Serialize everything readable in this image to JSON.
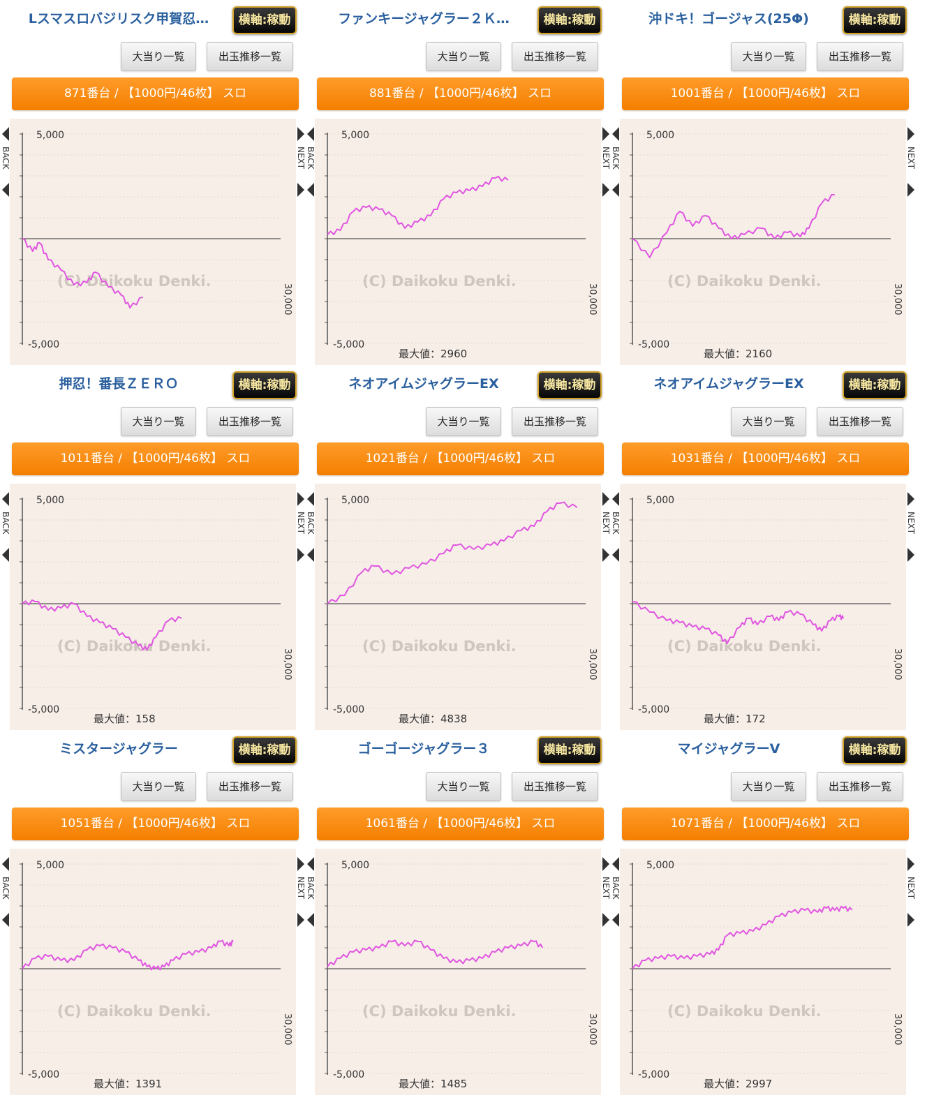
{
  "labels": {
    "axis_badge": "横軸:稼動",
    "bonus_list": "大当り一覧",
    "trend_list": "出玉推移一覧",
    "max_prefix": "最大値：",
    "y_top": "5,000",
    "y_bottom": "-5,000",
    "x_max": "30,000",
    "back": "BACK",
    "next": "NEXT",
    "watermark": "(C) Daikoku Denki."
  },
  "colors": {
    "accent_orange": "#f48a12",
    "line_magenta": "#e056e0",
    "title_blue": "#2a5f9e",
    "graph_bg": "#f7eee8"
  },
  "machines": [
    {
      "title": "Lスマスロバジリスク甲賀忍…",
      "unit": "871番台 / 【1000円/46枚】 スロ",
      "max_value": "",
      "chart_data": {
        "type": "line",
        "ylim": [
          -5000,
          5000
        ],
        "xlim": [
          0,
          30000
        ],
        "points": [
          [
            0,
            0
          ],
          [
            1200,
            -600
          ],
          [
            2000,
            -200
          ],
          [
            3000,
            -1000
          ],
          [
            4500,
            -1500
          ],
          [
            6000,
            -2200
          ],
          [
            7500,
            -2100
          ],
          [
            8500,
            -1600
          ],
          [
            10000,
            -2300
          ],
          [
            11500,
            -2700
          ],
          [
            12500,
            -3300
          ],
          [
            14000,
            -2800
          ]
        ]
      }
    },
    {
      "title": "ファンキージャグラー２Ｋ…",
      "unit": "881番台 / 【1000円/46枚】 スロ",
      "max_value": "2960",
      "chart_data": {
        "type": "line",
        "ylim": [
          -5000,
          5000
        ],
        "xlim": [
          0,
          30000
        ],
        "points": [
          [
            0,
            200
          ],
          [
            1500,
            400
          ],
          [
            3000,
            1300
          ],
          [
            4500,
            1500
          ],
          [
            6000,
            1400
          ],
          [
            7500,
            1100
          ],
          [
            9000,
            500
          ],
          [
            10500,
            800
          ],
          [
            12000,
            1100
          ],
          [
            13500,
            1900
          ],
          [
            15000,
            2200
          ],
          [
            16500,
            2300
          ],
          [
            18000,
            2500
          ],
          [
            19500,
            2900
          ],
          [
            21000,
            2800
          ]
        ]
      }
    },
    {
      "title": "沖ドキ！ゴージャス(25Φ)",
      "unit": "1001番台 / 【1000円/46枚】 スロ",
      "max_value": "2160",
      "chart_data": {
        "type": "line",
        "ylim": [
          -5000,
          5000
        ],
        "xlim": [
          0,
          30000
        ],
        "points": [
          [
            0,
            0
          ],
          [
            2000,
            -900
          ],
          [
            4000,
            300
          ],
          [
            5500,
            1300
          ],
          [
            7000,
            600
          ],
          [
            8500,
            1100
          ],
          [
            10000,
            500
          ],
          [
            11500,
            0
          ],
          [
            13000,
            200
          ],
          [
            15000,
            500
          ],
          [
            16500,
            0
          ],
          [
            18000,
            300
          ],
          [
            19500,
            100
          ],
          [
            20500,
            500
          ],
          [
            22000,
            1700
          ],
          [
            23500,
            2100
          ]
        ]
      }
    },
    {
      "title": "押忍！番長ＺＥＲＯ",
      "unit": "1011番台 / 【1000円/46枚】 スロ",
      "max_value": "158",
      "chart_data": {
        "type": "line",
        "ylim": [
          -5000,
          5000
        ],
        "xlim": [
          0,
          30000
        ],
        "points": [
          [
            0,
            0
          ],
          [
            1500,
            100
          ],
          [
            3000,
            -300
          ],
          [
            4500,
            -200
          ],
          [
            6000,
            0
          ],
          [
            7500,
            -600
          ],
          [
            9000,
            -900
          ],
          [
            10500,
            -1200
          ],
          [
            12000,
            -1600
          ],
          [
            13500,
            -2000
          ],
          [
            14500,
            -2200
          ],
          [
            15500,
            -1600
          ],
          [
            17000,
            -800
          ],
          [
            18500,
            -700
          ]
        ]
      }
    },
    {
      "title": "ネオアイムジャグラーEX",
      "unit": "1021番台 / 【1000円/46枚】 スロ",
      "max_value": "4838",
      "chart_data": {
        "type": "line",
        "ylim": [
          -5000,
          5000
        ],
        "xlim": [
          0,
          30000
        ],
        "points": [
          [
            0,
            0
          ],
          [
            2000,
            400
          ],
          [
            4000,
            1500
          ],
          [
            5500,
            1800
          ],
          [
            7500,
            1400
          ],
          [
            9500,
            1700
          ],
          [
            11500,
            1900
          ],
          [
            13500,
            2400
          ],
          [
            15000,
            2800
          ],
          [
            17000,
            2600
          ],
          [
            19000,
            2800
          ],
          [
            20500,
            3000
          ],
          [
            22500,
            3500
          ],
          [
            24000,
            3700
          ],
          [
            25500,
            4400
          ],
          [
            27000,
            4800
          ],
          [
            29000,
            4600
          ]
        ]
      }
    },
    {
      "title": "ネオアイムジャグラーEX",
      "unit": "1031番台 / 【1000円/46枚】 スロ",
      "max_value": "172",
      "chart_data": {
        "type": "line",
        "ylim": [
          -5000,
          5000
        ],
        "xlim": [
          0,
          30000
        ],
        "points": [
          [
            0,
            100
          ],
          [
            2000,
            -400
          ],
          [
            4000,
            -800
          ],
          [
            5500,
            -900
          ],
          [
            7000,
            -1100
          ],
          [
            8500,
            -1200
          ],
          [
            10000,
            -1500
          ],
          [
            11000,
            -1900
          ],
          [
            12500,
            -1100
          ],
          [
            13500,
            -700
          ],
          [
            14500,
            -1000
          ],
          [
            16000,
            -600
          ],
          [
            17000,
            -800
          ],
          [
            18000,
            -400
          ],
          [
            19500,
            -500
          ],
          [
            21000,
            -1000
          ],
          [
            22000,
            -1300
          ],
          [
            23000,
            -800
          ],
          [
            24000,
            -600
          ],
          [
            24500,
            -700
          ]
        ]
      }
    },
    {
      "title": "ミスタージャグラー",
      "unit": "1051番台 / 【1000円/46枚】 スロ",
      "max_value": "1391",
      "chart_data": {
        "type": "line",
        "ylim": [
          -5000,
          5000
        ],
        "xlim": [
          0,
          30000
        ],
        "points": [
          [
            0,
            0
          ],
          [
            1500,
            500
          ],
          [
            3000,
            600
          ],
          [
            4500,
            400
          ],
          [
            6000,
            400
          ],
          [
            7500,
            900
          ],
          [
            9000,
            1100
          ],
          [
            10500,
            1000
          ],
          [
            12000,
            800
          ],
          [
            13500,
            400
          ],
          [
            14500,
            100
          ],
          [
            15500,
            0
          ],
          [
            16500,
            100
          ],
          [
            17500,
            400
          ],
          [
            19000,
            700
          ],
          [
            20500,
            800
          ],
          [
            22000,
            1000
          ],
          [
            23000,
            1300
          ],
          [
            24000,
            1100
          ],
          [
            24500,
            1300
          ]
        ]
      }
    },
    {
      "title": "ゴーゴージャグラー３",
      "unit": "1061番台 / 【1000円/46枚】 スロ",
      "max_value": "1485",
      "chart_data": {
        "type": "line",
        "ylim": [
          -5000,
          5000
        ],
        "xlim": [
          0,
          30000
        ],
        "points": [
          [
            0,
            100
          ],
          [
            1500,
            500
          ],
          [
            3000,
            800
          ],
          [
            4500,
            900
          ],
          [
            6000,
            1000
          ],
          [
            7500,
            1300
          ],
          [
            9000,
            1100
          ],
          [
            10500,
            1300
          ],
          [
            12000,
            900
          ],
          [
            13500,
            500
          ],
          [
            15000,
            300
          ],
          [
            16500,
            400
          ],
          [
            18000,
            500
          ],
          [
            19500,
            800
          ],
          [
            21000,
            1000
          ],
          [
            22500,
            1100
          ],
          [
            24000,
            1300
          ],
          [
            25000,
            1000
          ]
        ]
      }
    },
    {
      "title": "マイジャグラーV",
      "unit": "1071番台 / 【1000円/46枚】 スロ",
      "max_value": "2997",
      "chart_data": {
        "type": "line",
        "ylim": [
          -5000,
          5000
        ],
        "xlim": [
          0,
          30000
        ],
        "points": [
          [
            0,
            0
          ],
          [
            1500,
            400
          ],
          [
            3000,
            500
          ],
          [
            4500,
            600
          ],
          [
            6000,
            500
          ],
          [
            7500,
            600
          ],
          [
            9000,
            700
          ],
          [
            10000,
            900
          ],
          [
            11000,
            1600
          ],
          [
            12500,
            1700
          ],
          [
            14000,
            1800
          ],
          [
            15500,
            2100
          ],
          [
            17000,
            2500
          ],
          [
            18500,
            2700
          ],
          [
            20000,
            2800
          ],
          [
            21500,
            2700
          ],
          [
            22500,
            2900
          ],
          [
            23500,
            2800
          ],
          [
            24500,
            2900
          ],
          [
            25500,
            2800
          ]
        ]
      }
    }
  ]
}
